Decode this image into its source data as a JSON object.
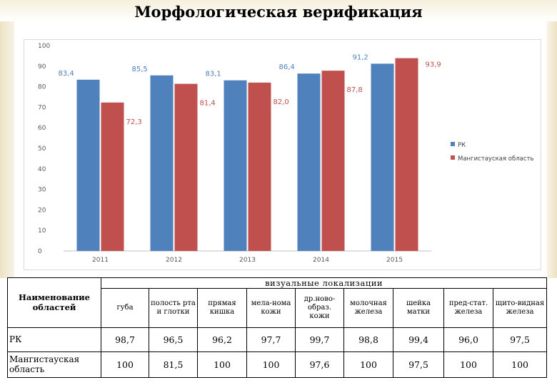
{
  "page": {
    "title": "Морфологическая верификация"
  },
  "chart_data": {
    "type": "bar",
    "categories": [
      "2011",
      "2012",
      "2013",
      "2014",
      "2015"
    ],
    "series": [
      {
        "name": "РК",
        "color": "#4f81bd",
        "values": [
          83.4,
          85.5,
          83.1,
          86.4,
          91.2
        ],
        "labels": [
          "83,4",
          "85,5",
          "83,1",
          "86,4",
          "91,2"
        ]
      },
      {
        "name": "Мангистауская область",
        "color": "#c0504d",
        "values": [
          72.3,
          81.4,
          82.0,
          87.8,
          93.9
        ],
        "labels": [
          "72,3",
          "81,4",
          "82,0",
          "87,8",
          "93,9"
        ]
      }
    ],
    "ylim": [
      0,
      100
    ],
    "yticks": [
      0,
      10,
      20,
      30,
      40,
      50,
      60,
      70,
      80,
      90,
      100
    ],
    "grid": false,
    "legend": "right",
    "title": "",
    "xlabel": "",
    "ylabel": ""
  },
  "table": {
    "name_header": "Наименование областей",
    "group_header": "визуальные локализации",
    "columns": [
      "губа",
      "полость рта и глотки",
      "прямая кишка",
      "мела-нома кожи",
      "др.ново-образ. кожи",
      "молочная железа",
      "шейка матки",
      "пред-стат. железа",
      "щито-видная железа"
    ],
    "rows": [
      {
        "label": "РК",
        "values": [
          "98,7",
          "96,5",
          "96,2",
          "97,7",
          "99,7",
          "98,8",
          "99,4",
          "96,0",
          "97,5"
        ]
      },
      {
        "label": "Мангистауская область",
        "values": [
          "100",
          "81,5",
          "100",
          "100",
          "97,6",
          "100",
          "97,5",
          "100",
          "100"
        ]
      }
    ]
  }
}
